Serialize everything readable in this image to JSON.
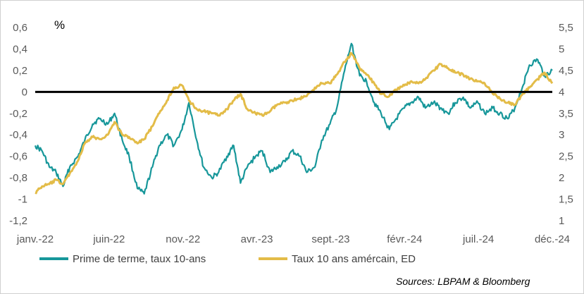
{
  "chart_data": {
    "type": "line",
    "unit_label": "%",
    "source": "Sources: LBPAM & Bloomberg",
    "x_tick_labels": [
      "janv.-22",
      "juin-22",
      "nov.-22",
      "avr.-23",
      "sept.-23",
      "févr.-24",
      "juil.-24",
      "déc.-24"
    ],
    "y_left": {
      "ylim": [
        -1.2,
        0.6
      ],
      "tick_labels": [
        "0,6",
        "0,4",
        "0,2",
        "0",
        "-0,2",
        "-0,4",
        "-0,6",
        "-0,8",
        "-1",
        "-1,2"
      ]
    },
    "y_right": {
      "ylim": [
        1,
        5.5
      ],
      "tick_labels": [
        "5,5",
        "5",
        "4,5",
        "4",
        "3,5",
        "3",
        "2,5",
        "2",
        "1,5",
        "1"
      ]
    },
    "reference_line": {
      "axis": "left",
      "value": 0,
      "color": "#000000"
    },
    "series": [
      {
        "name": "Prime de terme, taux 10-ans",
        "axis": "left",
        "color": "#17979A",
        "x": [
          "2022-01-03",
          "2022-01-17",
          "2022-02-01",
          "2022-02-15",
          "2022-03-01",
          "2022-03-15",
          "2022-04-01",
          "2022-04-15",
          "2022-05-01",
          "2022-05-15",
          "2022-06-01",
          "2022-06-15",
          "2022-07-01",
          "2022-07-15",
          "2022-08-01",
          "2022-08-15",
          "2022-09-01",
          "2022-09-15",
          "2022-10-01",
          "2022-10-15",
          "2022-11-01",
          "2022-11-15",
          "2022-12-01",
          "2022-12-15",
          "2023-01-01",
          "2023-01-15",
          "2023-02-01",
          "2023-02-15",
          "2023-03-01",
          "2023-03-15",
          "2023-04-01",
          "2023-04-15",
          "2023-05-01",
          "2023-05-15",
          "2023-06-01",
          "2023-06-15",
          "2023-07-01",
          "2023-07-15",
          "2023-08-01",
          "2023-08-15",
          "2023-09-01",
          "2023-09-15",
          "2023-10-01",
          "2023-10-15",
          "2023-11-01",
          "2023-11-15",
          "2023-12-01",
          "2023-12-15",
          "2024-01-01",
          "2024-01-15",
          "2024-02-01",
          "2024-02-15",
          "2024-03-01",
          "2024-03-15",
          "2024-04-01",
          "2024-04-15",
          "2024-05-01",
          "2024-05-15",
          "2024-06-01",
          "2024-06-15",
          "2024-07-01",
          "2024-07-15",
          "2024-08-01",
          "2024-08-15",
          "2024-09-01",
          "2024-09-15",
          "2024-10-01",
          "2024-10-15",
          "2024-11-01",
          "2024-11-15",
          "2024-12-01"
        ],
        "values": [
          -0.5,
          -0.55,
          -0.7,
          -0.75,
          -0.88,
          -0.7,
          -0.6,
          -0.45,
          -0.3,
          -0.25,
          -0.3,
          -0.2,
          -0.45,
          -0.6,
          -0.9,
          -0.95,
          -0.7,
          -0.5,
          -0.4,
          -0.5,
          -0.35,
          -0.1,
          -0.45,
          -0.7,
          -0.8,
          -0.75,
          -0.6,
          -0.5,
          -0.85,
          -0.7,
          -0.6,
          -0.55,
          -0.75,
          -0.7,
          -0.65,
          -0.55,
          -0.6,
          -0.75,
          -0.7,
          -0.45,
          -0.3,
          -0.15,
          0.2,
          0.45,
          0.15,
          0.1,
          -0.1,
          -0.2,
          -0.35,
          -0.25,
          -0.15,
          -0.1,
          -0.05,
          -0.15,
          -0.1,
          -0.15,
          -0.2,
          -0.1,
          -0.05,
          -0.15,
          -0.1,
          -0.2,
          -0.15,
          -0.2,
          -0.25,
          -0.15,
          0.05,
          0.25,
          0.3,
          0.15,
          0.2
        ]
      },
      {
        "name": "Taux 10 ans amércain, ED",
        "axis": "right",
        "color": "#E3BC48",
        "x": [
          "2022-01-03",
          "2022-01-17",
          "2022-02-01",
          "2022-02-15",
          "2022-03-01",
          "2022-03-15",
          "2022-04-01",
          "2022-04-15",
          "2022-05-01",
          "2022-05-15",
          "2022-06-01",
          "2022-06-15",
          "2022-07-01",
          "2022-07-15",
          "2022-08-01",
          "2022-08-15",
          "2022-09-01",
          "2022-09-15",
          "2022-10-01",
          "2022-10-15",
          "2022-11-01",
          "2022-11-15",
          "2022-12-01",
          "2022-12-15",
          "2023-01-01",
          "2023-01-15",
          "2023-02-01",
          "2023-02-15",
          "2023-03-01",
          "2023-03-15",
          "2023-04-01",
          "2023-04-15",
          "2023-05-01",
          "2023-05-15",
          "2023-06-01",
          "2023-06-15",
          "2023-07-01",
          "2023-07-15",
          "2023-08-01",
          "2023-08-15",
          "2023-09-01",
          "2023-09-15",
          "2023-10-01",
          "2023-10-15",
          "2023-11-01",
          "2023-11-15",
          "2023-12-01",
          "2023-12-15",
          "2024-01-01",
          "2024-01-15",
          "2024-02-01",
          "2024-02-15",
          "2024-03-01",
          "2024-03-15",
          "2024-04-01",
          "2024-04-15",
          "2024-05-01",
          "2024-05-15",
          "2024-06-01",
          "2024-06-15",
          "2024-07-01",
          "2024-07-15",
          "2024-08-01",
          "2024-08-15",
          "2024-09-01",
          "2024-09-15",
          "2024-10-01",
          "2024-10-15",
          "2024-11-01",
          "2024-11-15",
          "2024-12-01"
        ],
        "values": [
          1.65,
          1.8,
          1.85,
          1.95,
          1.85,
          2.1,
          2.4,
          2.8,
          2.95,
          2.9,
          3.0,
          3.3,
          3.0,
          2.95,
          2.8,
          2.9,
          3.2,
          3.5,
          3.8,
          4.1,
          4.15,
          3.8,
          3.6,
          3.55,
          3.5,
          3.45,
          3.6,
          3.8,
          3.95,
          3.6,
          3.5,
          3.45,
          3.55,
          3.7,
          3.75,
          3.8,
          3.85,
          3.9,
          4.1,
          4.2,
          4.2,
          4.4,
          4.7,
          4.9,
          4.55,
          4.4,
          4.2,
          3.95,
          3.9,
          4.05,
          4.15,
          4.25,
          4.2,
          4.3,
          4.5,
          4.65,
          4.55,
          4.45,
          4.4,
          4.3,
          4.25,
          4.2,
          3.95,
          3.85,
          3.75,
          3.7,
          3.95,
          4.1,
          4.3,
          4.45,
          4.2
        ]
      }
    ]
  }
}
